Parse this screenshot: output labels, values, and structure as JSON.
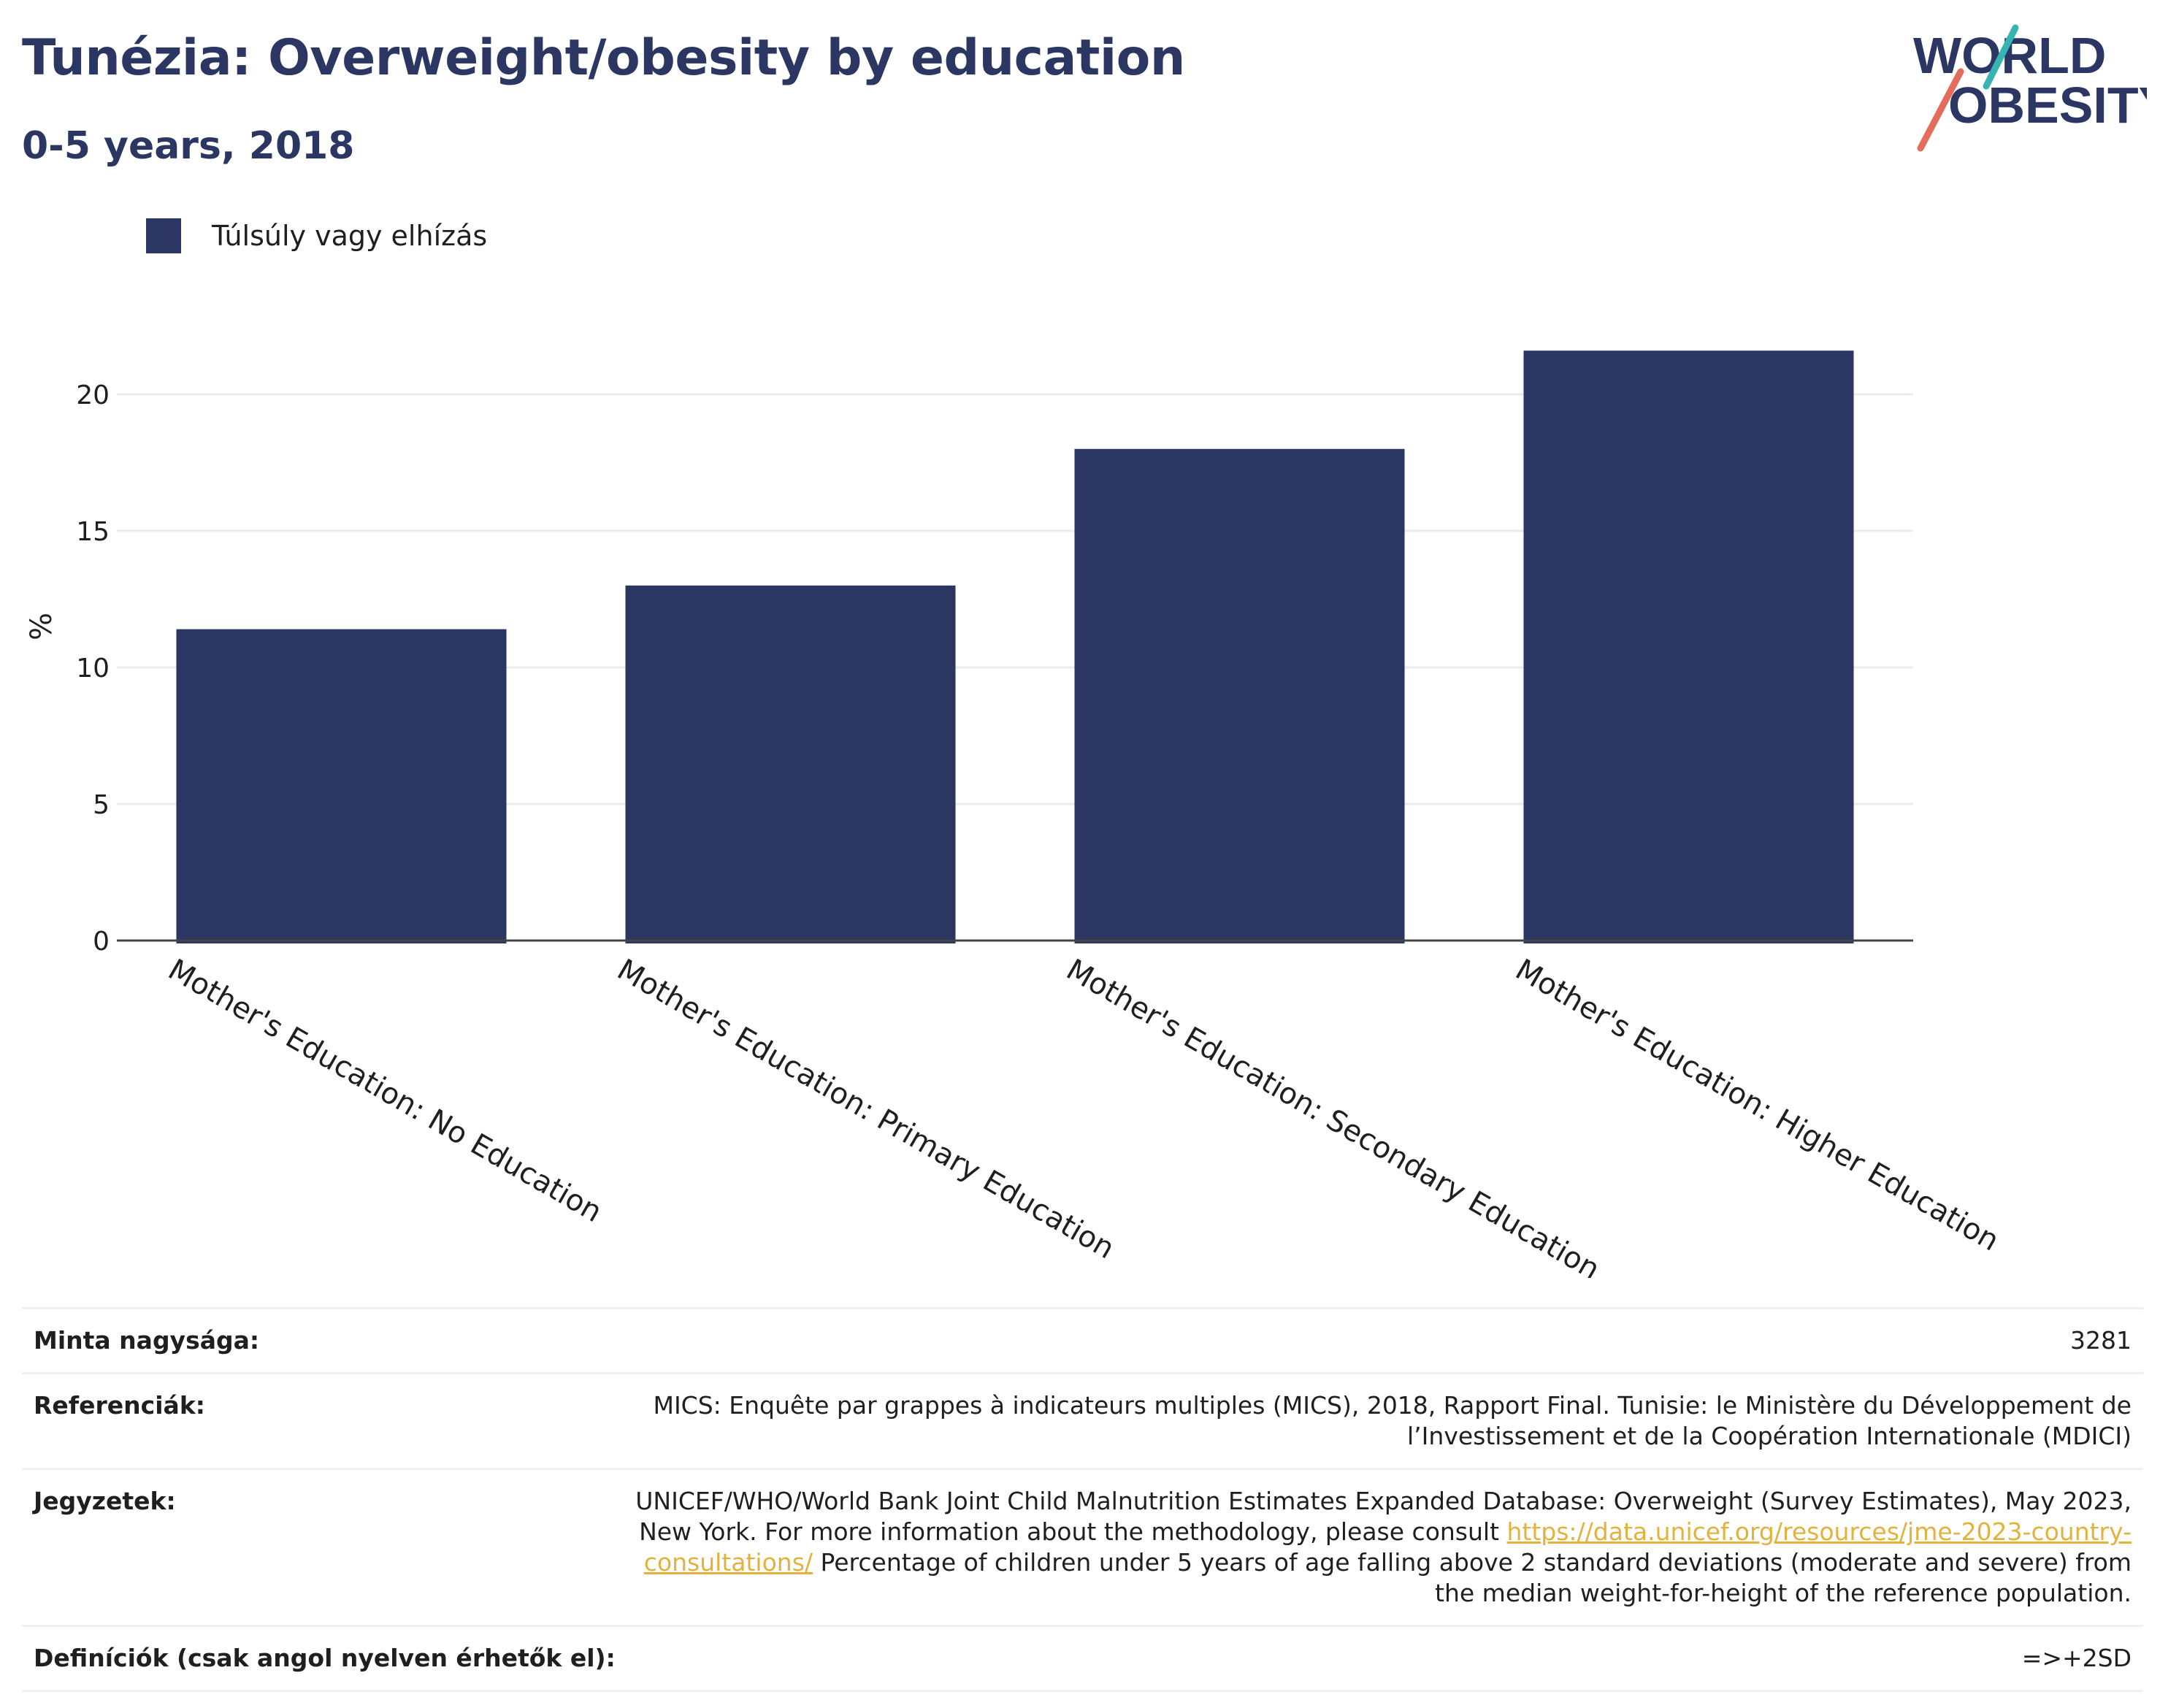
{
  "header": {
    "title": "Tunézia: Overweight/obesity by education",
    "subtitle": "0-5 years, 2018"
  },
  "logo": {
    "line1": "WORLD",
    "line2": "OBESITY"
  },
  "colors": {
    "bar": "#2b3762",
    "title": "#2b3762",
    "link": "#e3b23c",
    "logo_teal": "#36b3b3",
    "logo_coral": "#e46c5a"
  },
  "chart_data": {
    "type": "bar",
    "categories": [
      "Mother's Education: No Education",
      "Mother's Education: Primary Education",
      "Mother's Education: Secondary Education",
      "Mother's Education: Higher Education"
    ],
    "series": [
      {
        "name": "Túlsúly vagy elhízás",
        "values": [
          11.4,
          13.0,
          18.0,
          21.6
        ]
      }
    ],
    "ylabel": "%",
    "xlabel": "",
    "yticks": [
      0,
      5,
      10,
      15,
      20
    ],
    "ylim": [
      0,
      22.5
    ],
    "grid": true,
    "legend": "top-left"
  },
  "footer": {
    "sample_size": {
      "label": "Minta nagysága:",
      "value": "3281"
    },
    "references": {
      "label": "Referenciák:",
      "value": "MICS: Enquête par grappes à indicateurs multiples (MICS), 2018, Rapport Final. Tunisie: le Ministère du Développement de l’Investissement et de la Coopération Internationale (MDICI)"
    },
    "notes": {
      "label": "Jegyzetek:",
      "text_before": "UNICEF/WHO/World Bank Joint Child Malnutrition Estimates Expanded Database: Overweight (Survey Estimates), May 2023, New York. For more information about the methodology, please consult ",
      "link": "https://data.unicef.org/resources/jme-2023-country-consultations/",
      "text_after": " Percentage of children under 5 years of age falling above 2 standard deviations (moderate and severe) from the median weight-for-height of the reference population."
    },
    "definitions": {
      "label": "Definíciók (csak angol nyelven érhetők el):",
      "value": "=>+2SD"
    }
  }
}
